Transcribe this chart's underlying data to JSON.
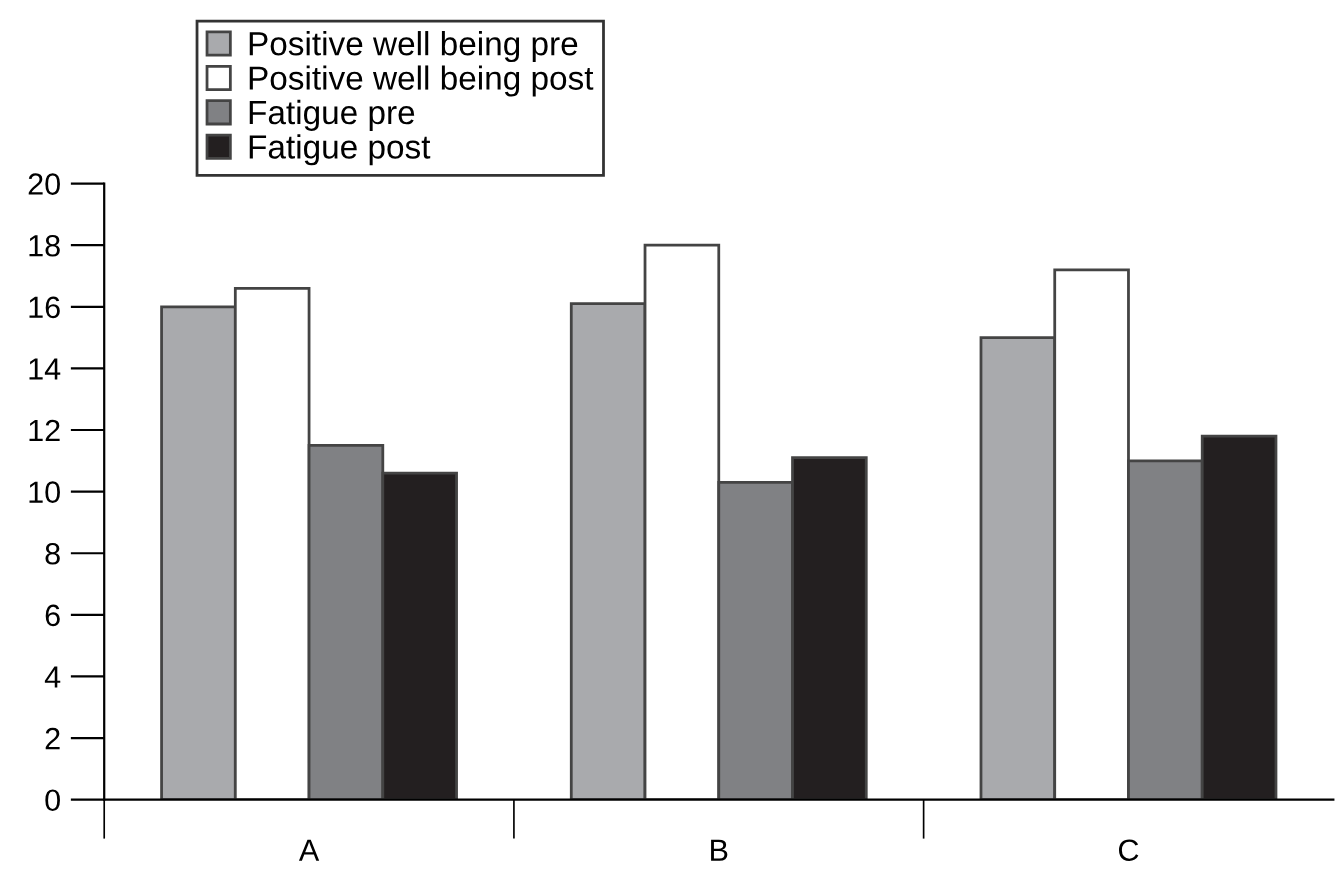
{
  "chart_data": {
    "type": "bar",
    "categories": [
      "A",
      "B",
      "C"
    ],
    "series": [
      {
        "name": "Positive well being pre",
        "color": "#a9aaad",
        "values": [
          16.0,
          16.1,
          15.0
        ]
      },
      {
        "name": "Positive well being post",
        "color": "#ffffff",
        "values": [
          16.6,
          18.0,
          17.2
        ]
      },
      {
        "name": "Fatigue pre",
        "color": "#808184",
        "values": [
          11.5,
          10.3,
          11.0
        ]
      },
      {
        "name": "Fatigue post",
        "color": "#231f20",
        "values": [
          10.6,
          11.1,
          11.8
        ]
      }
    ],
    "ylim": [
      0,
      20
    ],
    "yticks": [
      0,
      2,
      4,
      6,
      8,
      10,
      12,
      14,
      16,
      18,
      20
    ],
    "grid": false,
    "legend": "top left"
  }
}
